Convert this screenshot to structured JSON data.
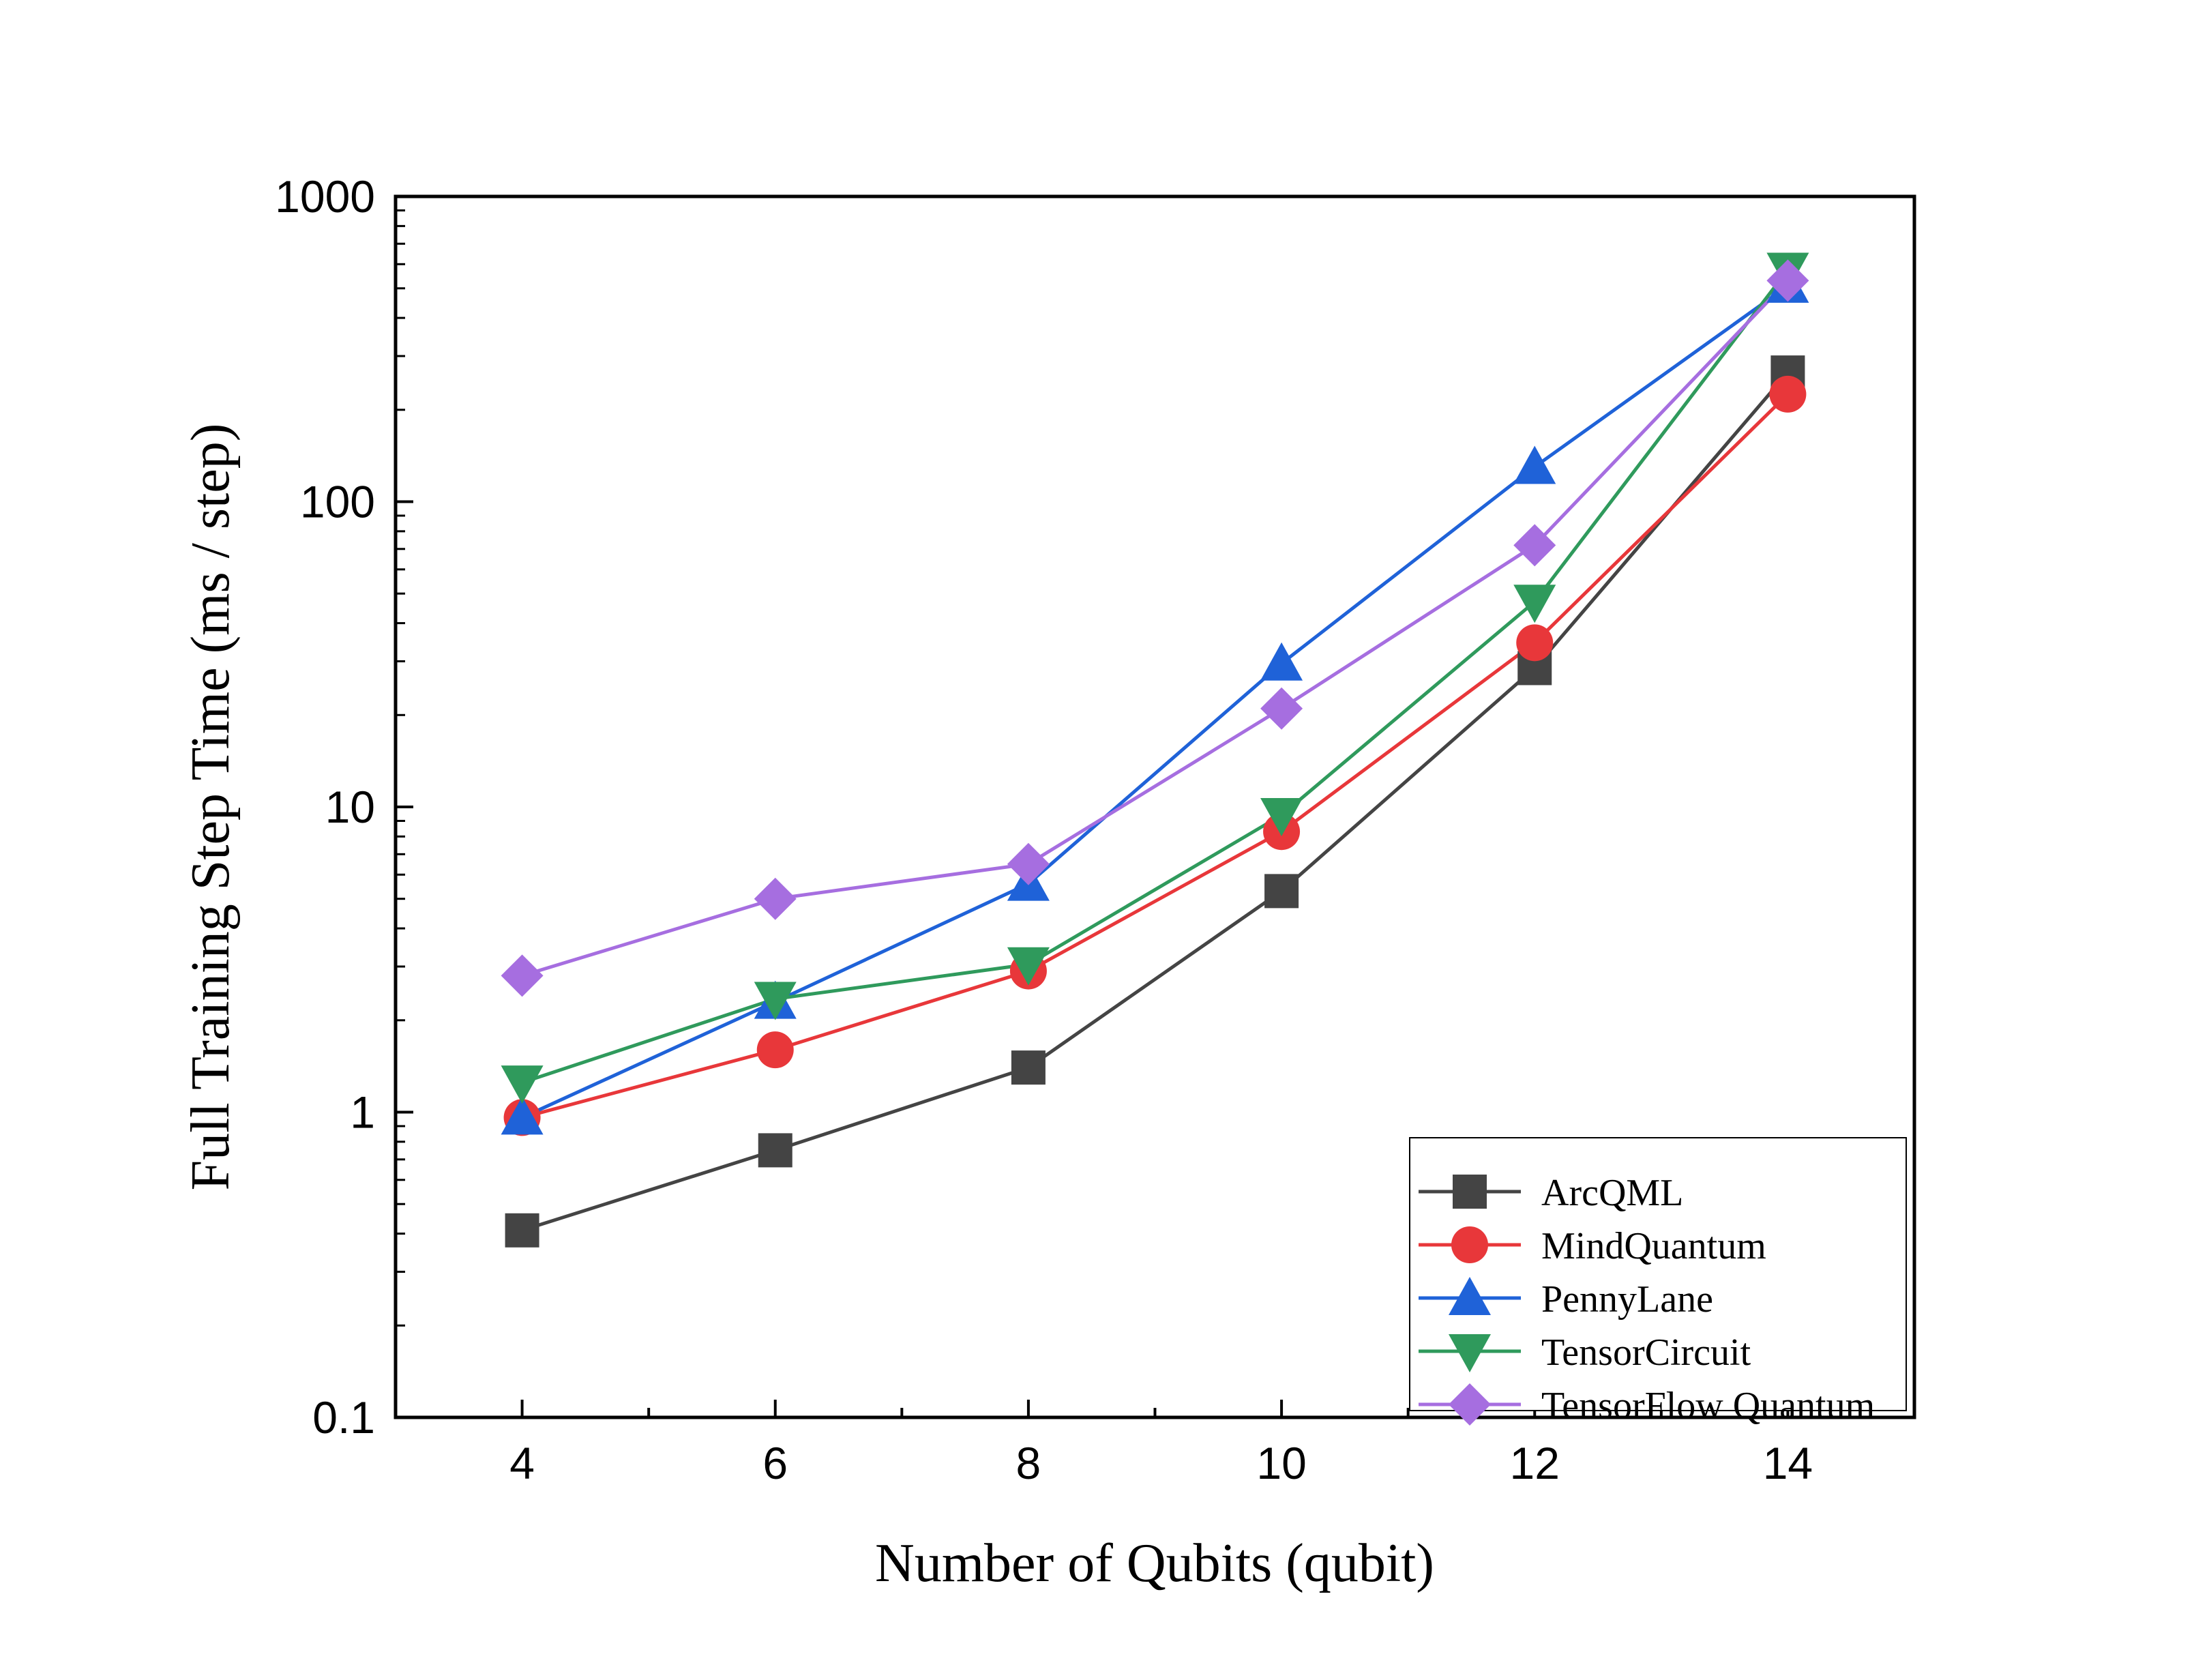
{
  "chart_data": {
    "type": "line",
    "title": "",
    "xlabel": "Number of Qubits (qubit)",
    "ylabel": "Full Training Step Time (ms / step)",
    "x": [
      4,
      6,
      8,
      10,
      12,
      14
    ],
    "x_ticks": [
      "4",
      "6",
      "8",
      "10",
      "12",
      "14"
    ],
    "xlim": [
      3,
      15
    ],
    "y_scale": "log",
    "ylim": [
      0.1,
      1000
    ],
    "y_ticks": [
      "0.1",
      "1",
      "10",
      "100",
      "1000"
    ],
    "grid": false,
    "legend_position": "bottom-right",
    "series": [
      {
        "name": "ArcQML",
        "color": "#444444",
        "marker": "square",
        "values": [
          0.41,
          0.75,
          1.4,
          5.3,
          28.5,
          265
        ]
      },
      {
        "name": "MindQuantum",
        "color": "#e8373a",
        "marker": "circle",
        "values": [
          0.96,
          1.6,
          2.9,
          8.3,
          34.5,
          225
        ]
      },
      {
        "name": "PennyLane",
        "color": "#1f62d8",
        "marker": "triangle-up",
        "values": [
          0.96,
          2.3,
          5.6,
          29.5,
          130,
          510
        ]
      },
      {
        "name": "TensorCircuit",
        "color": "#2f9a5c",
        "marker": "triangle-down",
        "values": [
          1.25,
          2.35,
          3.05,
          9.4,
          47,
          575
        ]
      },
      {
        "name": "TensorFlow Quantum",
        "color": "#a66ee0",
        "marker": "diamond",
        "values": [
          2.8,
          5.0,
          6.5,
          21,
          72,
          530
        ]
      }
    ]
  }
}
